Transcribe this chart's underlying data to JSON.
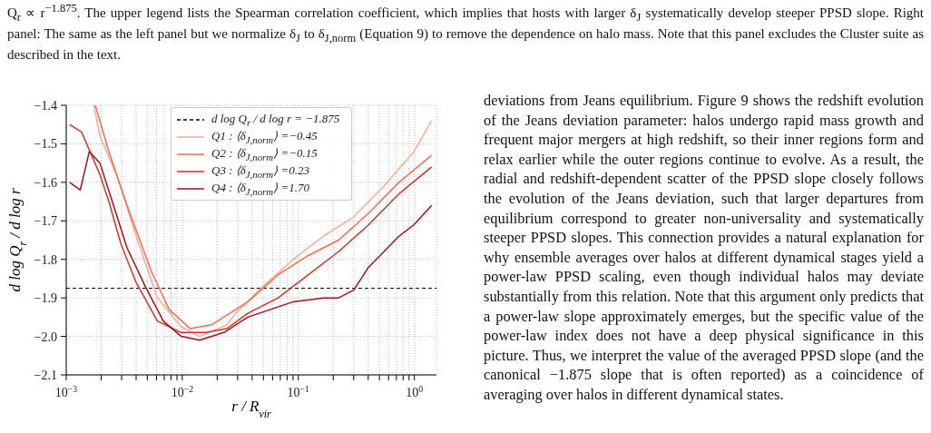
{
  "chart_data": {
    "type": "line",
    "xlabel": "r / R$_{vir}$",
    "ylabel": "d log Q$_{r}$ / d log r",
    "log": "x",
    "xlim": [
      0.001,
      1.55
    ],
    "ylim": [
      -2.1,
      -1.4
    ],
    "xticks": [
      {
        "value": 0.001,
        "label": "10$^{−3}$"
      },
      {
        "value": 0.002,
        "label": null
      },
      {
        "value": 0.003,
        "label": null
      },
      {
        "value": 0.004,
        "label": null
      },
      {
        "value": 0.005,
        "label": null
      },
      {
        "value": 0.006,
        "label": null
      },
      {
        "value": 0.007,
        "label": null
      },
      {
        "value": 0.008,
        "label": null
      },
      {
        "value": 0.009,
        "label": null
      },
      {
        "value": 0.01,
        "label": "10$^{−2}$"
      },
      {
        "value": 0.02,
        "label": null
      },
      {
        "value": 0.03,
        "label": null
      },
      {
        "value": 0.04,
        "label": null
      },
      {
        "value": 0.05,
        "label": null
      },
      {
        "value": 0.06,
        "label": null
      },
      {
        "value": 0.07,
        "label": null
      },
      {
        "value": 0.08,
        "label": null
      },
      {
        "value": 0.09,
        "label": null
      },
      {
        "value": 0.1,
        "label": "10$^{−1}$"
      },
      {
        "value": 0.2,
        "label": null
      },
      {
        "value": 0.3,
        "label": null
      },
      {
        "value": 0.4,
        "label": null
      },
      {
        "value": 0.5,
        "label": null
      },
      {
        "value": 0.6,
        "label": null
      },
      {
        "value": 0.7,
        "label": null
      },
      {
        "value": 0.8,
        "label": null
      },
      {
        "value": 0.9,
        "label": null
      },
      {
        "value": 1,
        "label": "10$^{0}$"
      }
    ],
    "yticks": [
      {
        "value": -1.4,
        "label": "−1.4"
      },
      {
        "value": -1.5,
        "label": "−1.5"
      },
      {
        "value": -1.6,
        "label": "−1.6"
      },
      {
        "value": -1.7,
        "label": "−1.7"
      },
      {
        "value": -1.8,
        "label": "−1.8"
      },
      {
        "value": -1.9,
        "label": "−1.9"
      },
      {
        "value": -2.0,
        "label": "−2.0"
      },
      {
        "value": -2.1,
        "label": "−2.1"
      }
    ],
    "grid": true,
    "legend": "top",
    "ref_lines": [
      {
        "axis": "y",
        "value": -1.875,
        "label": "d log Q$_{r}$ / d log r = −1.875",
        "color": "#000000",
        "line_style": "dashed"
      }
    ],
    "series": [
      {
        "name": "Q1 : ⟨δ$_{J,norm}$⟩ =−0.45",
        "color": "#fcaa8c",
        "x": [
          0.00173,
          0.00195,
          0.00279,
          0.004,
          0.0061,
          0.0098,
          0.0141,
          0.0242,
          0.0289,
          0.0496,
          0.0904,
          0.164,
          0.3,
          0.546,
          0.993,
          1.41
        ],
        "values": [
          -1.4,
          -1.48,
          -1.59,
          -1.74,
          -1.9,
          -1.975,
          -2.0,
          -1.97,
          -1.94,
          -1.87,
          -1.8,
          -1.74,
          -1.69,
          -1.61,
          -1.52,
          -1.44
        ]
      },
      {
        "name": "Q2 : ⟨δ$_{J,norm}$⟩ =−0.15",
        "color": "#fb6a4a",
        "x": [
          0.00178,
          0.00233,
          0.00334,
          0.0054,
          0.0077,
          0.0117,
          0.0179,
          0.0242,
          0.0367,
          0.067,
          0.122,
          0.222,
          0.404,
          0.736,
          1.41
        ],
        "values": [
          -1.4,
          -1.52,
          -1.66,
          -1.83,
          -1.93,
          -1.98,
          -1.97,
          -1.945,
          -1.91,
          -1.84,
          -1.79,
          -1.75,
          -1.68,
          -1.6,
          -1.53
        ]
      },
      {
        "name": "Q3 : ⟨δ$_{J,norm}$⟩ =0.23",
        "color": "#de2d26",
        "x": [
          0.00107,
          0.00136,
          0.00195,
          0.00233,
          0.00296,
          0.004,
          0.0061,
          0.0098,
          0.0159,
          0.0242,
          0.0367,
          0.067,
          0.122,
          0.222,
          0.404,
          0.736,
          1.41
        ],
        "values": [
          -1.45,
          -1.47,
          -1.58,
          -1.65,
          -1.76,
          -1.86,
          -1.96,
          -1.99,
          -1.99,
          -1.98,
          -1.94,
          -1.9,
          -1.84,
          -1.78,
          -1.71,
          -1.63,
          -1.56
        ]
      },
      {
        "name": "Q4 : ⟨δ$_{J,norm}$⟩ =1.70",
        "color": "#a50f15",
        "x": [
          0.00107,
          0.00132,
          0.00158,
          0.00195,
          0.00262,
          0.00334,
          0.00479,
          0.00686,
          0.0098,
          0.0141,
          0.0228,
          0.0367,
          0.0904,
          0.164,
          0.222,
          0.3,
          0.404,
          0.546,
          0.736,
          0.993,
          1.41
        ],
        "values": [
          -1.6,
          -1.62,
          -1.52,
          -1.55,
          -1.67,
          -1.77,
          -1.87,
          -1.96,
          -2.0,
          -2.01,
          -1.99,
          -1.95,
          -1.91,
          -1.9,
          -1.9,
          -1.88,
          -1.82,
          -1.78,
          -1.74,
          -1.71,
          -1.66
        ]
      }
    ],
    "annotations": [
      "Q$_{r}$ ∝ r$^{−1.875}$. The upper legend lists the Spearman correlation coefficient, which implies that hosts with larger δ$_{J}$ systematically develop steeper PPSD slope. Right panel: The same as the left panel but we normalize δ$_{J}$ to δ$_{J,norm}$ (Equation 9) to remove the dependence on halo mass. Note that this panel excludes the Cluster suite as described in the text.",
      "deviations from Jeans equilibrium. Figure 9 shows the redshift evolution of the Jeans deviation parameter: halos undergo rapid mass growth and frequent major mergers at high redshift, so their inner regions form and relax earlier while the outer regions continue to evolve. As a result, the radial and redshift-dependent scatter of the PPSD slope closely follows the evolution of the Jeans deviation, such that larger departures from equilibrium correspond to greater non-universality and systematically steeper PPSD slopes. This connection provides a natural explanation for why ensemble averages over halos at different dynamical stages yield a power-law PPSD scaling, even though individual halos may deviate substantially from this relation. Note that this argument only predicts that a power-law slope approximately emerges, but the specific value of the power-law index does not have a deep physical significance in this picture. Thus, we interpret the value of the averaged PPSD slope (and the canonical −1.875 slope that is often reported) as a coincidence of averaging over halos in different dynamical states."
    ]
  }
}
